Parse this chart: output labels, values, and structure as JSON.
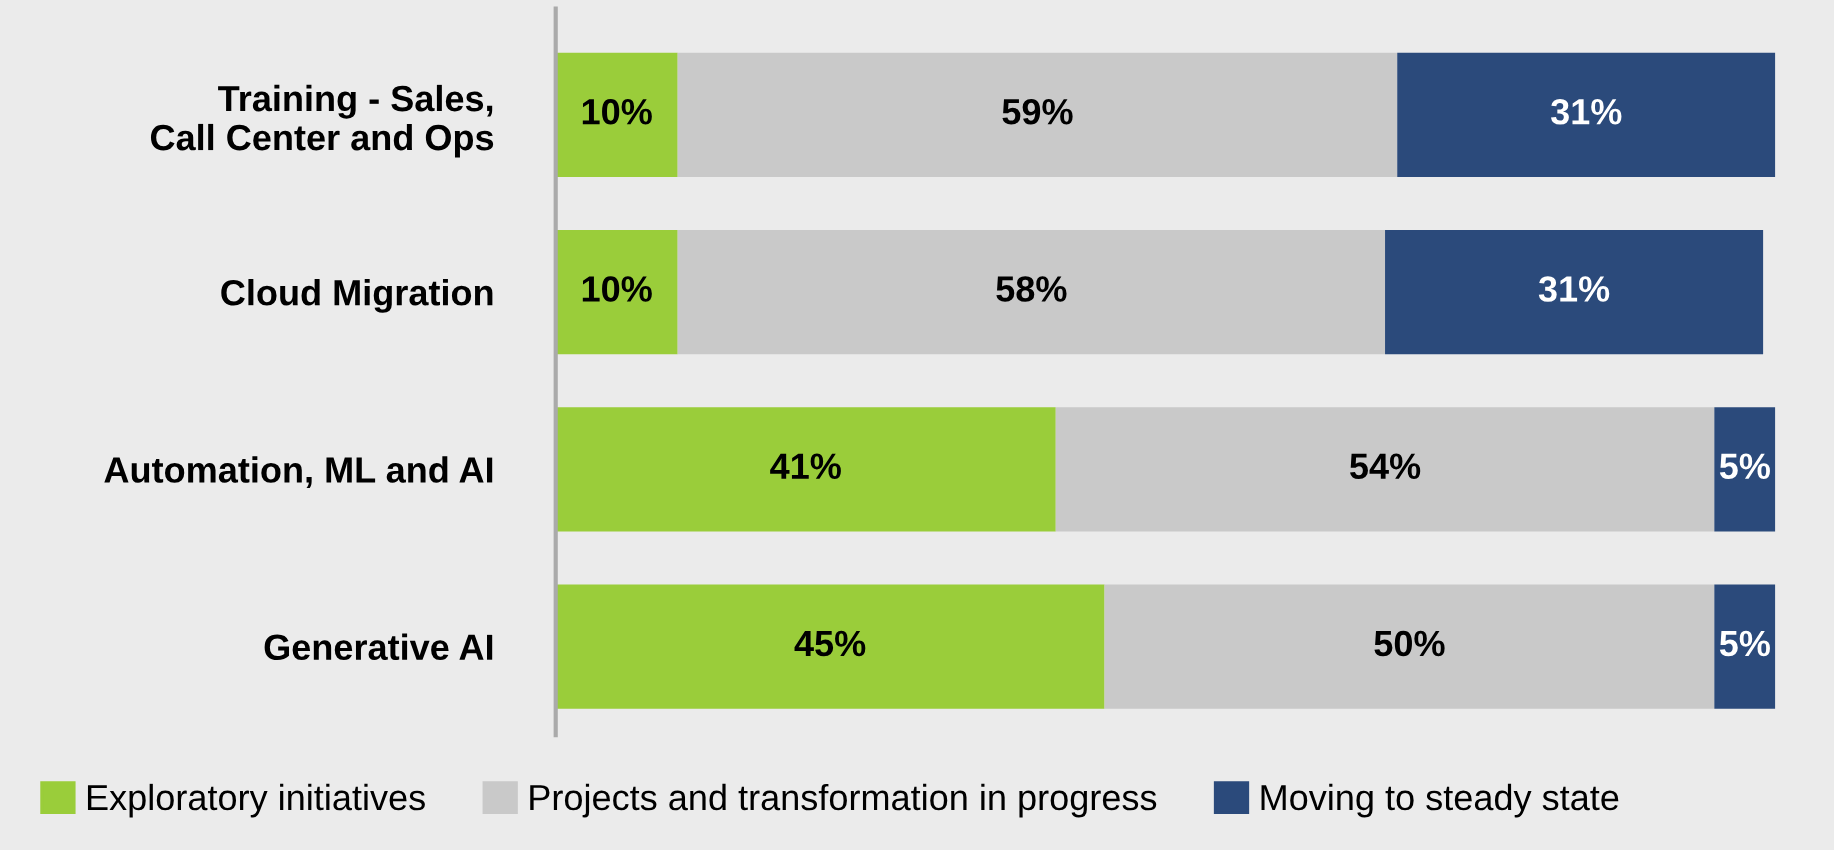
{
  "chart_data": {
    "type": "bar",
    "orientation": "horizontal",
    "stacked": true,
    "legend": "bottom",
    "categories": [
      "Training - Sales,\nCall Center and Ops",
      "Cloud Migration",
      "Automation, ML and AI",
      "Generative AI"
    ],
    "series": [
      {
        "name": "Exploratory initiatives",
        "color": "#9acd3a",
        "values": [
          10,
          10,
          41,
          45
        ],
        "value_labels": [
          "10%",
          "10%",
          "41%",
          "45%"
        ]
      },
      {
        "name": "Projects and transformation in progress",
        "color": "#c9c9c9",
        "values": [
          59,
          58,
          54,
          50
        ],
        "value_labels": [
          "59%",
          "58%",
          "54%",
          "50%"
        ]
      },
      {
        "name": "Moving to steady state",
        "color": "#2b4a7b",
        "values": [
          31,
          31,
          5,
          5
        ],
        "value_labels": [
          "31%",
          "31%",
          "5%",
          "5%"
        ]
      }
    ]
  }
}
